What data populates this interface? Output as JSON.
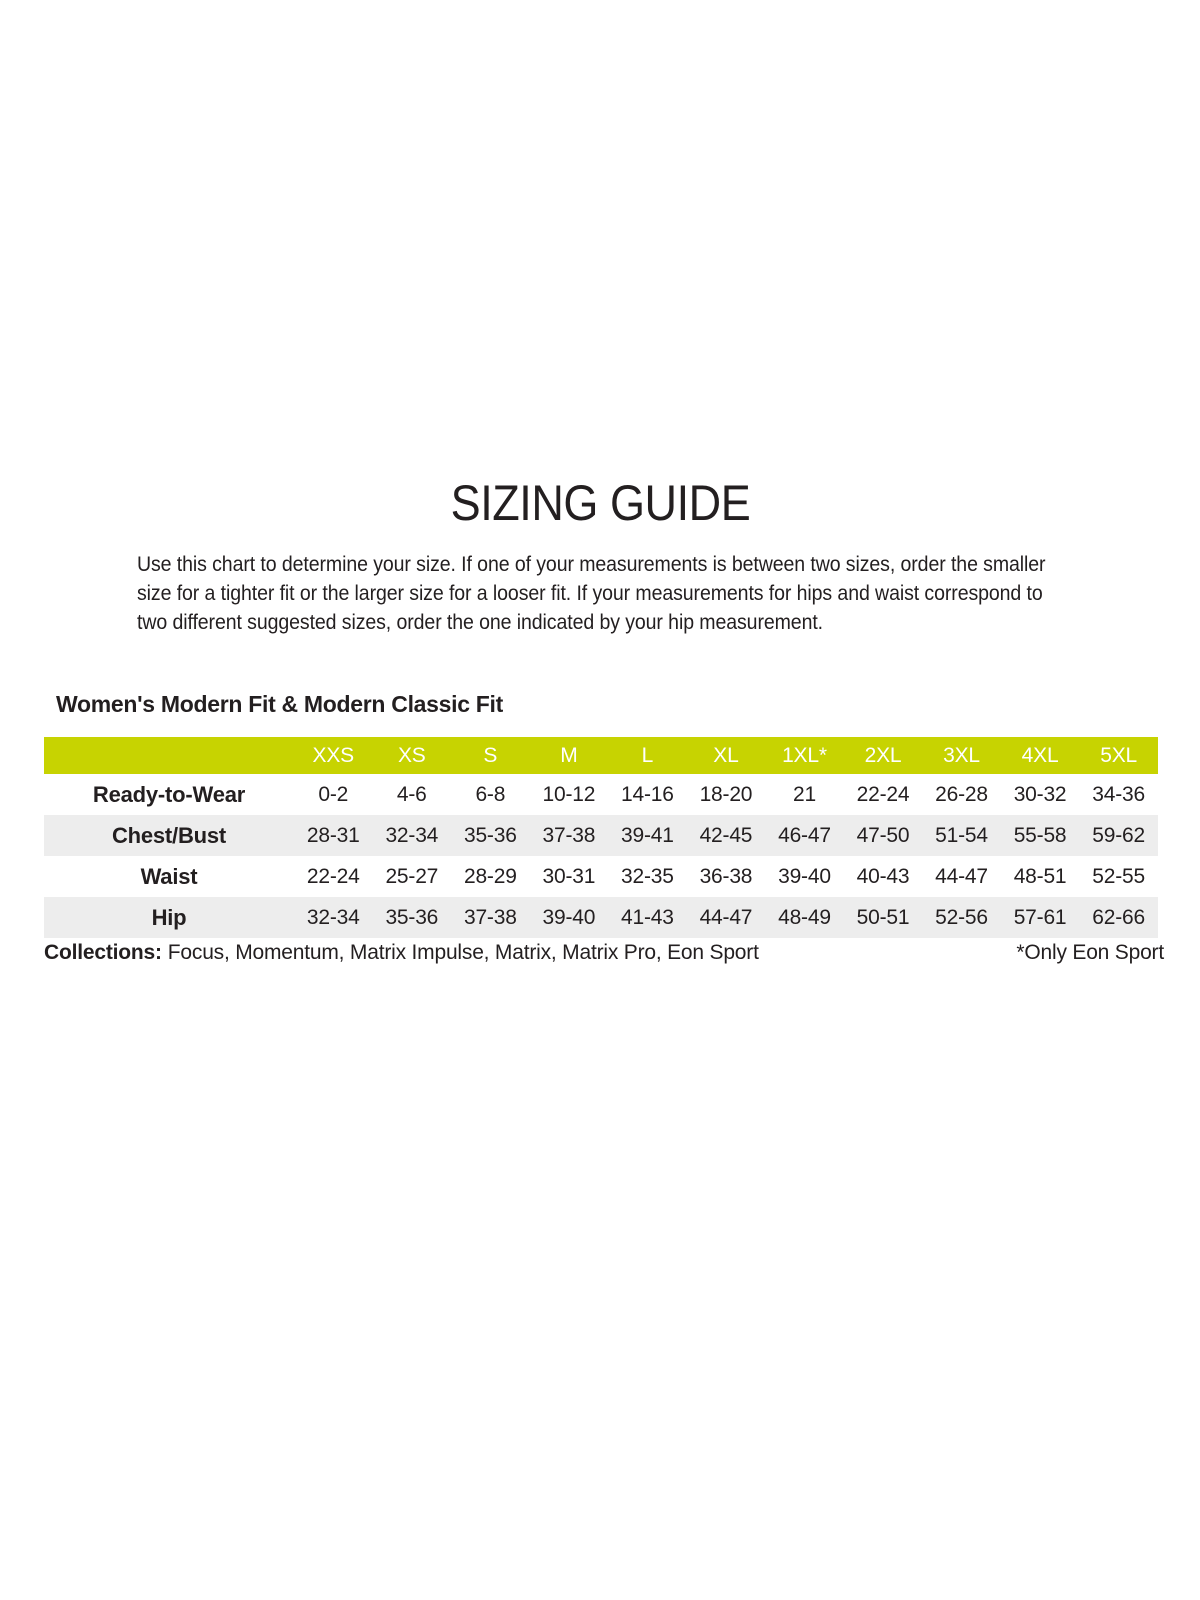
{
  "page": {
    "title": "SIZING GUIDE",
    "intro": "Use this chart to determine your size. If one of your measurements is between two sizes, order the smaller\nsize for a tighter fit or the larger size for a looser fit. If your measurements for hips and waist correspond to\ntwo different suggested sizes, order the one indicated by your hip measurement."
  },
  "section": {
    "heading": "Women's Modern Fit & Modern Classic Fit"
  },
  "table": {
    "header": [
      "",
      "XXS",
      "XS",
      "S",
      "M",
      "L",
      "XL",
      "1XL*",
      "2XL",
      "3XL",
      "4XL",
      "5XL"
    ],
    "rows": [
      {
        "label": "Ready-to-Wear",
        "values": [
          "0-2",
          "4-6",
          "6-8",
          "10-12",
          "14-16",
          "18-20",
          "21",
          "22-24",
          "26-28",
          "30-32",
          "34-36"
        ]
      },
      {
        "label": "Chest/Bust",
        "values": [
          "28-31",
          "32-34",
          "35-36",
          "37-38",
          "39-41",
          "42-45",
          "46-47",
          "47-50",
          "51-54",
          "55-58",
          "59-62"
        ]
      },
      {
        "label": "Waist",
        "values": [
          "22-24",
          "25-27",
          "28-29",
          "30-31",
          "32-35",
          "36-38",
          "39-40",
          "40-43",
          "44-47",
          "48-51",
          "52-55"
        ]
      },
      {
        "label": "Hip",
        "values": [
          "32-34",
          "35-36",
          "37-38",
          "39-40",
          "41-43",
          "44-47",
          "48-49",
          "50-51",
          "52-56",
          "57-61",
          "62-66"
        ]
      }
    ]
  },
  "footer": {
    "collections_label": "Collections:",
    "collections_list": "Focus, Momentum, Matrix Impulse, Matrix, Matrix Pro, Eon Sport",
    "note": "*Only Eon Sport"
  },
  "colors": {
    "accent_green": "#c7d301",
    "row_alt_gray": "#ededed",
    "text_color": "#231f20",
    "header_text": "#ffffff"
  }
}
